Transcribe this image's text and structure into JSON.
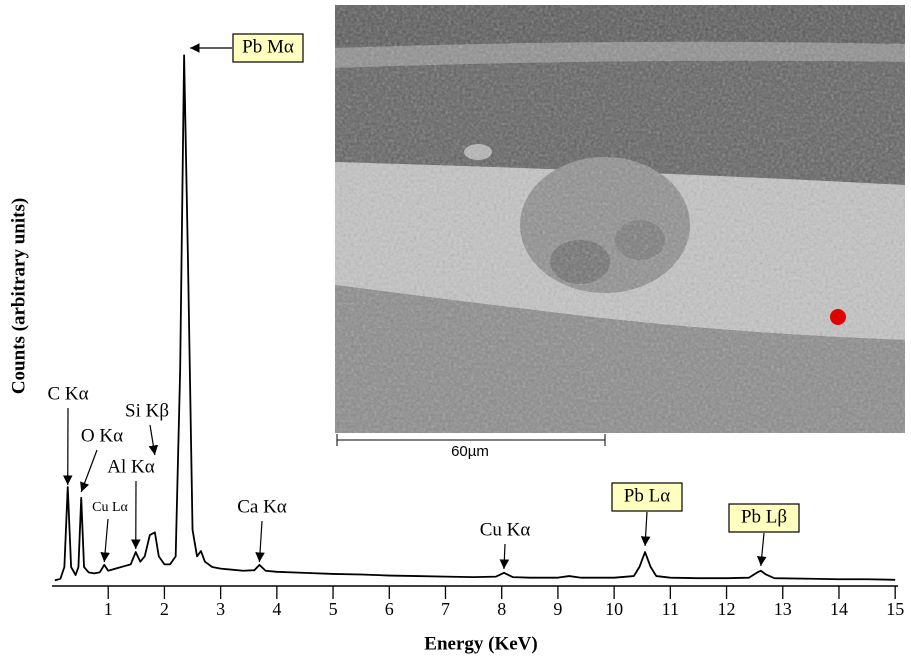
{
  "chart_data": {
    "type": "line",
    "x_label": "Energy (KeV)",
    "y_label": "Counts (arbitrary units)",
    "x": [
      0.05,
      0.15,
      0.22,
      0.28,
      0.34,
      0.42,
      0.47,
      0.52,
      0.57,
      0.65,
      0.75,
      0.85,
      0.93,
      1.0,
      1.1,
      1.2,
      1.3,
      1.4,
      1.49,
      1.57,
      1.65,
      1.74,
      1.83,
      1.9,
      2.0,
      2.1,
      2.2,
      2.28,
      2.35,
      2.42,
      2.5,
      2.58,
      2.65,
      2.72,
      2.85,
      3.0,
      3.2,
      3.4,
      3.6,
      3.69,
      3.8,
      4.0,
      4.5,
      5.0,
      5.5,
      6.0,
      6.5,
      7.0,
      7.5,
      7.9,
      8.04,
      8.2,
      8.5,
      9.0,
      9.2,
      9.4,
      10.0,
      10.35,
      10.45,
      10.55,
      10.65,
      10.75,
      11.0,
      11.5,
      12.0,
      12.4,
      12.55,
      12.61,
      12.7,
      12.85,
      13.5,
      14.0,
      14.5,
      15.0
    ],
    "series": [
      {
        "color": "#000000",
        "values": [
          0.5,
          0.8,
          3,
          18,
          3,
          1.5,
          3,
          16,
          3,
          2,
          1.8,
          2,
          3.4,
          2.3,
          2.6,
          2.9,
          3.2,
          3.5,
          5.8,
          4,
          5,
          9,
          9.5,
          5,
          3.5,
          3.5,
          5,
          40,
          99,
          60,
          10,
          5,
          6,
          4,
          3,
          2.7,
          2.5,
          2.3,
          2.4,
          3.4,
          2.3,
          2.1,
          1.9,
          1.7,
          1.6,
          1.4,
          1.3,
          1.2,
          1.1,
          1.2,
          1.9,
          1.1,
          1.0,
          1.0,
          1.3,
          1.0,
          1.0,
          1.3,
          3,
          5.8,
          3,
          1.3,
          1.0,
          0.9,
          0.9,
          1.0,
          2,
          2.3,
          1.6,
          0.9,
          0.8,
          0.7,
          0.7,
          0.6
        ]
      }
    ],
    "xlim": [
      0,
      15.05
    ],
    "ylim": [
      0,
      100
    ],
    "xticks": [
      1,
      2,
      3,
      4,
      5,
      6,
      7,
      8,
      9,
      10,
      11,
      12,
      13,
      14,
      15
    ],
    "annotations": [
      {
        "text": "C Kα",
        "x": 0.28,
        "boxed": false
      },
      {
        "text": "O Kα",
        "x": 0.52,
        "boxed": false
      },
      {
        "text": "Cu Lα",
        "x": 0.93,
        "boxed": false
      },
      {
        "text": "Si Kβ",
        "x": 1.83,
        "boxed": false
      },
      {
        "text": "Al Kα",
        "x": 1.49,
        "boxed": false
      },
      {
        "text": "Pb Mα",
        "x": 2.35,
        "boxed": true
      },
      {
        "text": "Ca Kα",
        "x": 3.69,
        "boxed": false
      },
      {
        "text": "Cu Kα",
        "x": 8.04,
        "boxed": false
      },
      {
        "text": "Pb Lα",
        "x": 10.55,
        "boxed": true
      },
      {
        "text": "Pb Lβ",
        "x": 12.61,
        "boxed": true
      }
    ]
  },
  "inset": {
    "scale_bar_label": "60µm"
  }
}
